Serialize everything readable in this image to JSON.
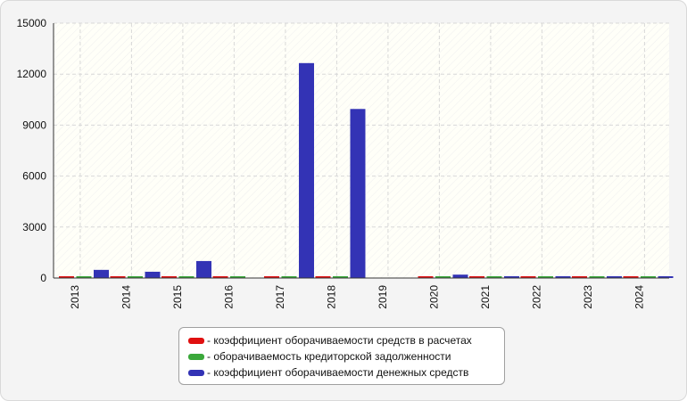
{
  "chart_data": {
    "type": "bar",
    "categories": [
      "2013",
      "2014",
      "2015",
      "2016",
      "2017",
      "2018",
      "2019",
      "2020",
      "2021",
      "2022",
      "2023",
      "2024"
    ],
    "series": [
      {
        "name": "- коэффициент оборачиваемости средств в расчетах",
        "color": "#e01010",
        "values": [
          15,
          12,
          13,
          12,
          11,
          10,
          0,
          12,
          14,
          13,
          14,
          15
        ]
      },
      {
        "name": "- оборачиваемость кредиторской задолженности",
        "color": "#3aa83a",
        "values": [
          10,
          9,
          9,
          8,
          8,
          7,
          0,
          9,
          10,
          9,
          10,
          11
        ]
      },
      {
        "name": "- коэффициент оборачиваемости денежных средств",
        "color": "#3333b5",
        "values": [
          480,
          370,
          1000,
          0,
          12650,
          9950,
          0,
          200,
          30,
          40,
          40,
          50
        ]
      }
    ],
    "ylim": [
      0,
      15000
    ],
    "yticks": [
      "0",
      "3000",
      "6000",
      "9000",
      "12000",
      "15000"
    ],
    "grid": true,
    "legend_position": "bottom-center"
  }
}
